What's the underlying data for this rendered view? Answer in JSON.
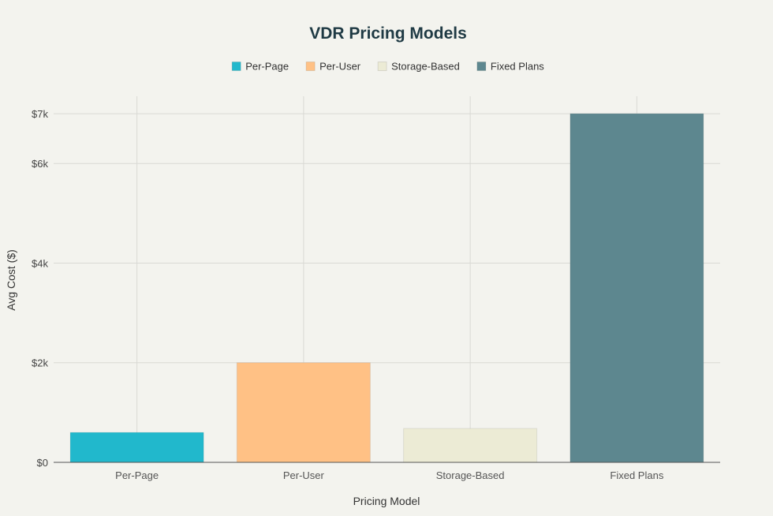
{
  "chart_data": {
    "type": "bar",
    "title": "VDR Pricing Models",
    "xlabel": "Pricing Model",
    "ylabel": "Avg Cost ($)",
    "categories": [
      "Per-Page",
      "Per-User",
      "Storage-Based",
      "Fixed Plans"
    ],
    "values": [
      600,
      2000,
      680,
      7000
    ],
    "colors": [
      "#21b8cc",
      "#ffc185",
      "#ecebd5",
      "#5d878f"
    ],
    "legend": {
      "placement": "top-center",
      "entries": [
        "Per-Page",
        "Per-User",
        "Storage-Based",
        "Fixed Plans"
      ]
    },
    "ylim": [
      0,
      7350
    ],
    "yticks": [
      0,
      2000,
      4000,
      6000,
      7000
    ],
    "ytick_labels": [
      "$0",
      "$2k",
      "$4k",
      "$6k",
      "$7k"
    ],
    "grid": true
  }
}
